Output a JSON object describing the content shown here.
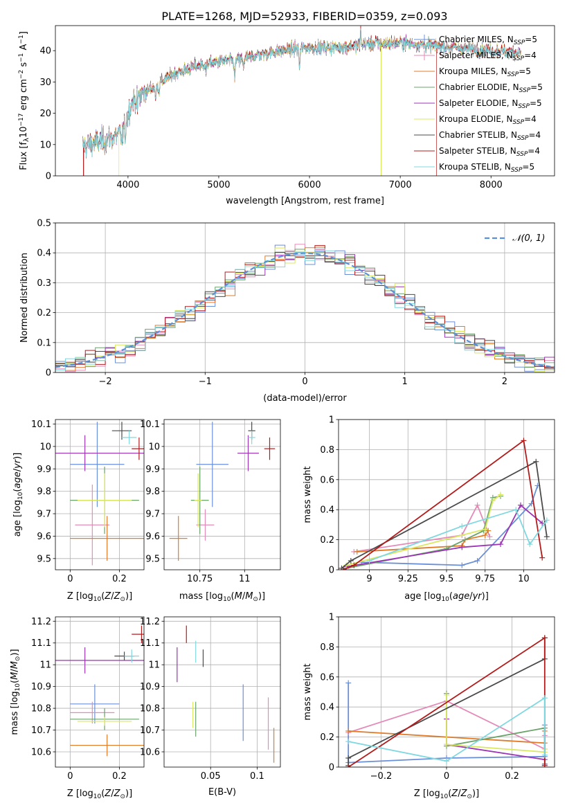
{
  "figure_title": "PLATE=1268, MJD=52933, FIBERID=0359, z=0.093",
  "series_names": [
    "Chabrier MILES, N_SSP=5",
    "Salpeter MILES, N_SSP=4",
    "Kroupa MILES, N_SSP=5",
    "Chabrier ELODIE, N_SSP=5",
    "Salpeter ELODIE, N_SSP=5",
    "Kroupa ELODIE, N_SSP=4",
    "Chabrier STELIB, N_SSP=4",
    "Salpeter STELIB, N_SSP=4",
    "Kroupa STELIB, N_SSP=5"
  ],
  "colors": [
    "#6a8fd9",
    "#e48ab8",
    "#e07b2a",
    "#6aa36a",
    "#9b33b5",
    "#d9e860",
    "#4a4a4a",
    "#b31b1b",
    "#7fd8e0"
  ],
  "chart_data": [
    {
      "id": "spectrum",
      "type": "line",
      "title": "PLATE=1268, MJD=52933, FIBERID=0359, z=0.093",
      "xlabel": "wavelength [Angstrom, rest frame]",
      "ylabel": "Flux [f_λ 10^-17 erg cm^-2 s^-1 A^-1]",
      "xlim": [
        3200,
        8700
      ],
      "ylim": [
        0,
        48
      ],
      "xticks": [
        4000,
        5000,
        6000,
        7000,
        8000
      ],
      "yticks": [
        0,
        10,
        20,
        30,
        40
      ],
      "grid": false,
      "legend": "top-right",
      "continuum_knots": {
        "x": [
          3500,
          3700,
          3900,
          3950,
          4050,
          4250,
          4500,
          4800,
          5000,
          5200,
          5400,
          5700,
          6000,
          6300,
          6600,
          7000,
          7400,
          7800,
          8300
        ],
        "y": [
          9.5,
          11,
          13,
          15,
          24,
          28,
          32.5,
          35.5,
          36.5,
          37,
          38.5,
          40,
          41,
          41,
          42,
          42.5,
          41.5,
          40.5,
          39.5
        ]
      },
      "absorption_features": [
        {
          "x": 3934,
          "depth": 4
        },
        {
          "x": 3969,
          "depth": 4
        },
        {
          "x": 4102,
          "depth": 3
        },
        {
          "x": 4304,
          "depth": 5
        },
        {
          "x": 4341,
          "depth": 3
        },
        {
          "x": 4861,
          "depth": 3
        },
        {
          "x": 5175,
          "depth": 6
        },
        {
          "x": 5270,
          "depth": 3
        },
        {
          "x": 5890,
          "depth": 6
        }
      ],
      "emission_features": [
        {
          "x": 6563,
          "height": 5
        },
        {
          "x": 6730,
          "height": 2
        }
      ],
      "dropouts": [
        {
          "series": "Kroupa ELODIE, N_SSP=4",
          "x": [
            3900,
            6790
          ]
        },
        {
          "series": "Salpeter STELIB, N_SSP=4",
          "x": [
            3510,
            7400
          ]
        }
      ]
    },
    {
      "id": "residual-histogram",
      "type": "bar",
      "xlabel": "(data-model)/error",
      "ylabel": "Normed distribution",
      "xlim": [
        -2.5,
        2.5
      ],
      "ylim": [
        0,
        0.5
      ],
      "xticks": [
        -2,
        -1,
        0,
        1,
        2
      ],
      "yticks": [
        0.0,
        0.1,
        0.2,
        0.3,
        0.4,
        0.5
      ],
      "bin_width": 0.1,
      "grid": true,
      "legend": "top-right",
      "reference_curve": {
        "name": "N(0,1)",
        "label": "𝒩(0, 1)",
        "mean": 0,
        "sigma": 1
      }
    },
    {
      "id": "age-vs-metallicity",
      "type": "scatter",
      "xlabel": "Z [log10(Z/Z_sun)]",
      "ylabel": "age [log10(age/yr)]",
      "xlim": [
        -0.06,
        0.3
      ],
      "ylim": [
        9.45,
        10.12
      ],
      "xticks": [
        0.0,
        0.2
      ],
      "yticks": [
        9.5,
        9.6,
        9.7,
        9.8,
        9.9,
        10.0,
        10.1
      ],
      "grid": true,
      "points": [
        {
          "x": 0.11,
          "y": 9.92,
          "xerr": 0.11,
          "yerr": 0.19
        },
        {
          "x": 0.09,
          "y": 9.65,
          "xerr": 0.07,
          "yerr": 0.18
        },
        {
          "x": 0.15,
          "y": 9.59,
          "xerr": 0.15,
          "yerr": 0.1
        },
        {
          "x": 0.14,
          "y": 9.76,
          "xerr": 0.14,
          "yerr": 0.15
        },
        {
          "x": 0.06,
          "y": 9.97,
          "xerr": 0.24,
          "yerr": 0.08
        },
        {
          "x": 0.14,
          "y": 9.76,
          "xerr": 0.11,
          "yerr": 0.12
        },
        {
          "x": 0.21,
          "y": 10.07,
          "xerr": 0.04,
          "yerr": 0.04
        },
        {
          "x": 0.28,
          "y": 9.99,
          "xerr": 0.03,
          "yerr": 0.05
        },
        {
          "x": 0.24,
          "y": 10.04,
          "xerr": 0.03,
          "yerr": 0.03
        }
      ]
    },
    {
      "id": "age-vs-mass",
      "type": "scatter",
      "xlabel": "mass [log10(M/M_sun)]",
      "ylabel": "",
      "xlim": [
        10.55,
        11.2
      ],
      "ylim": [
        9.45,
        10.12
      ],
      "xticks": [
        10.75,
        11.0
      ],
      "yticks": [
        9.5,
        9.6,
        9.7,
        9.8,
        9.9,
        10.0,
        10.1
      ],
      "grid": true,
      "points": [
        {
          "x": 10.82,
          "y": 9.92,
          "xerr": 0.09,
          "yerr": 0.19
        },
        {
          "x": 10.78,
          "y": 9.65,
          "xerr": 0.05,
          "yerr": 0.07
        },
        {
          "x": 10.63,
          "y": 9.59,
          "xerr": 0.05,
          "yerr": 0.1
        },
        {
          "x": 10.75,
          "y": 9.76,
          "xerr": 0.05,
          "yerr": 0.15
        },
        {
          "x": 11.02,
          "y": 9.97,
          "xerr": 0.06,
          "yerr": 0.08
        },
        {
          "x": 10.74,
          "y": 9.76,
          "xerr": 0.02,
          "yerr": 0.12
        },
        {
          "x": 11.04,
          "y": 10.07,
          "xerr": 0.02,
          "yerr": 0.04
        },
        {
          "x": 11.14,
          "y": 9.99,
          "xerr": 0.03,
          "yerr": 0.05
        },
        {
          "x": 11.04,
          "y": 10.04,
          "xerr": 0.02,
          "yerr": 0.03
        }
      ]
    },
    {
      "id": "mass-weight-vs-age",
      "type": "line",
      "xlabel": "age [log10(age/yr)]",
      "ylabel": "mass weight",
      "xlim": [
        8.8,
        10.2
      ],
      "ylim": [
        0,
        1
      ],
      "xticks": [
        9.0,
        9.25,
        9.5,
        9.75,
        10.0
      ],
      "yticks": [
        0.0,
        0.2,
        0.4,
        0.6,
        0.8,
        1.0
      ],
      "grid": true,
      "series": [
        {
          "name": "Chabrier MILES, N_SSP=5",
          "x": [
            8.95,
            9.6,
            9.7,
            10.05,
            10.09
          ],
          "y": [
            0.05,
            0.03,
            0.06,
            0.44,
            0.56
          ]
        },
        {
          "name": "Salpeter MILES, N_SSP=4",
          "x": [
            8.9,
            9.6,
            9.7,
            9.78
          ],
          "y": [
            0.12,
            0.23,
            0.43,
            0.22
          ]
        },
        {
          "name": "Kroupa MILES, N_SSP=5",
          "x": [
            8.92,
            9.6,
            9.62,
            9.75,
            9.77
          ],
          "y": [
            0.12,
            0.16,
            0.2,
            0.23,
            0.26
          ]
        },
        {
          "name": "Chabrier ELODIE, N_SSP=5",
          "x": [
            8.85,
            9.5,
            9.74,
            9.8,
            9.85
          ],
          "y": [
            0.01,
            0.14,
            0.26,
            0.48,
            0.49
          ]
        },
        {
          "name": "Salpeter ELODIE, N_SSP=5",
          "x": [
            8.85,
            9.6,
            9.85,
            9.98,
            10.12
          ],
          "y": [
            0.02,
            0.15,
            0.17,
            0.43,
            0.31
          ]
        },
        {
          "name": "Kroupa ELODIE, N_SSP=4",
          "x": [
            8.85,
            9.75,
            9.8,
            9.85
          ],
          "y": [
            0.03,
            0.27,
            0.46,
            0.5
          ]
        },
        {
          "name": "Chabrier STELIB, N_SSP=4",
          "x": [
            8.82,
            8.88,
            10.08,
            10.15
          ],
          "y": [
            0.01,
            0.06,
            0.72,
            0.22
          ]
        },
        {
          "name": "Salpeter STELIB, N_SSP=4",
          "x": [
            8.83,
            8.9,
            10.0,
            10.12
          ],
          "y": [
            0.0,
            0.03,
            0.86,
            0.08
          ]
        },
        {
          "name": "Kroupa STELIB, N_SSP=5",
          "x": [
            9.0,
            9.6,
            9.95,
            10.04,
            10.15
          ],
          "y": [
            0.06,
            0.29,
            0.4,
            0.17,
            0.33
          ]
        }
      ]
    },
    {
      "id": "mass-vs-metallicity",
      "type": "scatter",
      "xlabel": "Z [log10(Z/Z_sun)]",
      "ylabel": "mass [log10(M/M_sun)]",
      "xlim": [
        -0.06,
        0.3
      ],
      "ylim": [
        10.53,
        11.22
      ],
      "xticks": [
        0.0,
        0.2
      ],
      "yticks": [
        10.6,
        10.7,
        10.8,
        10.9,
        11.0,
        11.1,
        11.2
      ],
      "grid": true,
      "points": [
        {
          "x": 0.1,
          "y": 10.82,
          "xerr": 0.1,
          "yerr": 0.09
        },
        {
          "x": 0.09,
          "y": 10.78,
          "xerr": 0.09,
          "yerr": 0.05
        },
        {
          "x": 0.15,
          "y": 10.63,
          "xerr": 0.15,
          "yerr": 0.05
        },
        {
          "x": 0.14,
          "y": 10.75,
          "xerr": 0.14,
          "yerr": 0.05
        },
        {
          "x": 0.06,
          "y": 11.02,
          "xerr": 0.24,
          "yerr": 0.06
        },
        {
          "x": 0.14,
          "y": 10.74,
          "xerr": 0.11,
          "yerr": 0.02
        },
        {
          "x": 0.22,
          "y": 11.04,
          "xerr": 0.04,
          "yerr": 0.02
        },
        {
          "x": 0.29,
          "y": 11.14,
          "xerr": 0.04,
          "yerr": 0.04
        },
        {
          "x": 0.25,
          "y": 11.04,
          "xerr": 0.03,
          "yerr": 0.03
        }
      ]
    },
    {
      "id": "mass-vs-ebv",
      "type": "scatter",
      "xlabel": "E(B-V)",
      "ylabel": "",
      "xlim": [
        0.0,
        0.125
      ],
      "ylim": [
        10.53,
        11.22
      ],
      "xticks": [
        0.05,
        0.1
      ],
      "yticks": [
        10.6,
        10.7,
        10.8,
        10.9,
        11.0,
        11.1,
        11.2
      ],
      "grid": true,
      "points": [
        {
          "x": 0.085,
          "y": 10.78,
          "xerr": 0,
          "yerr": 0.13
        },
        {
          "x": 0.112,
          "y": 10.73,
          "xerr": 0,
          "yerr": 0.12
        },
        {
          "x": 0.118,
          "y": 10.63,
          "xerr": 0,
          "yerr": 0.08
        },
        {
          "x": 0.034,
          "y": 10.75,
          "xerr": 0,
          "yerr": 0.08
        },
        {
          "x": 0.014,
          "y": 11.0,
          "xerr": 0,
          "yerr": 0.08
        },
        {
          "x": 0.031,
          "y": 10.77,
          "xerr": 0,
          "yerr": 0.06
        },
        {
          "x": 0.042,
          "y": 11.03,
          "xerr": 0,
          "yerr": 0.04
        },
        {
          "x": 0.024,
          "y": 11.14,
          "xerr": 0,
          "yerr": 0.04
        },
        {
          "x": 0.034,
          "y": 11.06,
          "xerr": 0,
          "yerr": 0.05
        }
      ]
    },
    {
      "id": "mass-weight-vs-metallicity",
      "type": "line",
      "xlabel": "Z [log10(Z/Z_sun)]",
      "ylabel": "mass weight",
      "xlim": [
        -0.33,
        0.33
      ],
      "ylim": [
        0,
        1
      ],
      "xticks": [
        -0.2,
        0.0,
        0.2
      ],
      "yticks": [
        0.0,
        0.2,
        0.4,
        0.6,
        0.8,
        1.0
      ],
      "grid": true,
      "series": [
        {
          "name": "Chabrier MILES, N_SSP=5",
          "x": [
            -0.3,
            -0.3,
            0.0,
            0.3,
            0.3
          ],
          "y": [
            0.56,
            0.03,
            0.06,
            0.07,
            0.28
          ]
        },
        {
          "name": "Salpeter MILES, N_SSP=4",
          "x": [
            -0.3,
            0.0,
            0.3,
            0.3
          ],
          "y": [
            0.23,
            0.44,
            0.12,
            0.21
          ]
        },
        {
          "name": "Kroupa MILES, N_SSP=5",
          "x": [
            -0.3,
            0.3,
            0.3,
            0.3
          ],
          "y": [
            0.24,
            0.16,
            0.24,
            0.26
          ]
        },
        {
          "name": "Chabrier ELODIE, N_SSP=5",
          "x": [
            0.0,
            0.0,
            0.3,
            0.3
          ],
          "y": [
            0.49,
            0.14,
            0.26,
            0.01
          ]
        },
        {
          "name": "Salpeter ELODIE, N_SSP=5",
          "x": [
            0.0,
            0.0,
            0.3,
            0.3
          ],
          "y": [
            0.32,
            0.15,
            0.05,
            0.02
          ]
        },
        {
          "name": "Kroupa ELODIE, N_SSP=4",
          "x": [
            0.0,
            0.0,
            0.3,
            0.3
          ],
          "y": [
            0.48,
            0.15,
            0.1,
            0.12
          ]
        },
        {
          "name": "Chabrier STELIB, N_SSP=4",
          "x": [
            -0.3,
            -0.3,
            0.3,
            0.3
          ],
          "y": [
            0.01,
            0.06,
            0.72,
            0.86
          ]
        },
        {
          "name": "Salpeter STELIB, N_SSP=4",
          "x": [
            -0.3,
            0.3,
            0.3
          ],
          "y": [
            0.0,
            0.86,
            0.01
          ]
        },
        {
          "name": "Kroupa STELIB, N_SSP=5",
          "x": [
            -0.3,
            0.0,
            0.3,
            0.3
          ],
          "y": [
            0.17,
            0.04,
            0.46,
            0.08
          ]
        }
      ]
    }
  ]
}
